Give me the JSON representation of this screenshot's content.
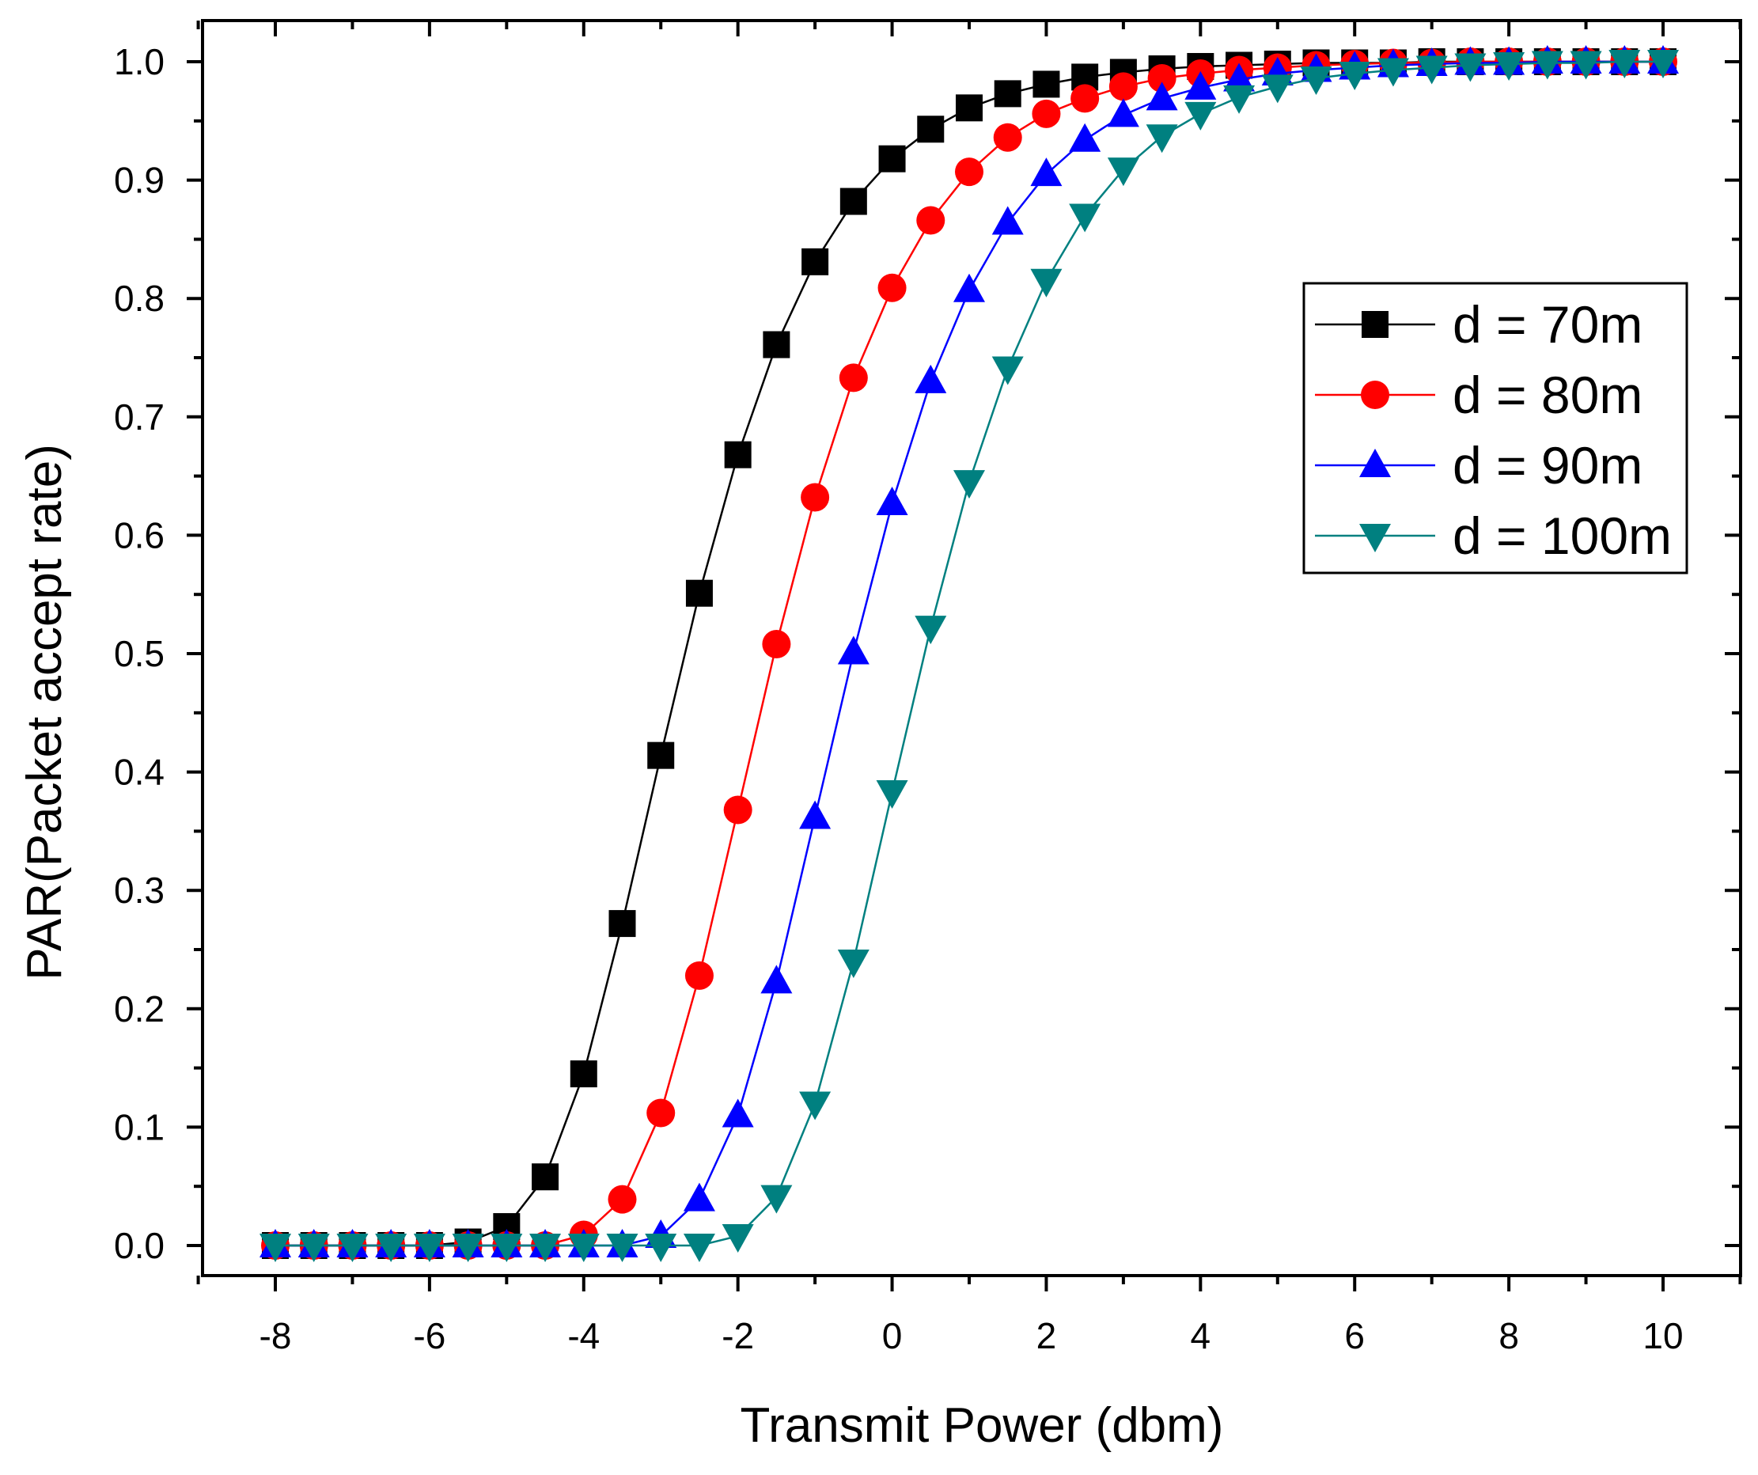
{
  "chart_data": {
    "type": "line",
    "title": "",
    "xlabel": "Transmit Power (dbm)",
    "ylabel": "PAR(Packet accept rate)",
    "xlim": [
      -9,
      11
    ],
    "ylim": [
      -0.05,
      1.02
    ],
    "xticks": [
      -8,
      -6,
      -4,
      -2,
      0,
      2,
      4,
      6,
      8,
      10
    ],
    "xtick_labels": [
      "-8",
      "-6",
      "-4",
      "-2",
      "0",
      "2",
      "4",
      "6",
      "8",
      "10"
    ],
    "yticks": [
      0.0,
      0.1,
      0.2,
      0.3,
      0.4,
      0.5,
      0.6,
      0.7,
      0.8,
      0.9,
      1.0
    ],
    "ytick_labels": [
      "0.0",
      "0.1",
      "0.2",
      "0.3",
      "0.4",
      "0.5",
      "0.6",
      "0.7",
      "0.8",
      "0.9",
      "1.0"
    ],
    "grid": false,
    "legend_position": "right-upper",
    "x": [
      -8,
      -7.5,
      -7,
      -6.5,
      -6,
      -5.5,
      -5,
      -4.5,
      -4,
      -3.5,
      -3,
      -2.5,
      -2,
      -1.5,
      -1,
      -0.5,
      0,
      0.5,
      1,
      1.5,
      2,
      2.5,
      3,
      3.5,
      4,
      4.5,
      5,
      5.5,
      6,
      6.5,
      7,
      7.5,
      8,
      8.5,
      9,
      9.5,
      10
    ],
    "series": [
      {
        "name": "d = 70m",
        "color": "#000000",
        "marker": "square",
        "values": [
          0,
          0,
          0,
          0,
          0,
          0.003,
          0.016,
          0.058,
          0.145,
          0.272,
          0.414,
          0.551,
          0.668,
          0.761,
          0.831,
          0.882,
          0.918,
          0.943,
          0.961,
          0.973,
          0.981,
          0.987,
          0.991,
          0.994,
          0.996,
          0.997,
          0.998,
          0.999,
          0.999,
          0.999,
          1.0,
          1.0,
          1.0,
          1.0,
          1.0,
          1.0,
          1.0
        ]
      },
      {
        "name": "d = 80m",
        "color": "#ff0000",
        "marker": "circle",
        "values": [
          0,
          0,
          0,
          0,
          0,
          0,
          0,
          0,
          0.009,
          0.039,
          0.112,
          0.228,
          0.368,
          0.508,
          0.632,
          0.733,
          0.809,
          0.866,
          0.907,
          0.936,
          0.956,
          0.969,
          0.979,
          0.986,
          0.99,
          0.993,
          0.995,
          0.997,
          0.998,
          0.999,
          0.999,
          1.0,
          1.0,
          1.0,
          1.0,
          1.0,
          1.0
        ]
      },
      {
        "name": "d = 90m",
        "color": "#0000ff",
        "marker": "triangle-up",
        "values": [
          0,
          0,
          0,
          0,
          0,
          0,
          0,
          0,
          0,
          0,
          0.008,
          0.039,
          0.11,
          0.223,
          0.362,
          0.501,
          0.627,
          0.73,
          0.807,
          0.864,
          0.905,
          0.934,
          0.955,
          0.969,
          0.978,
          0.985,
          0.99,
          0.993,
          0.995,
          0.997,
          0.998,
          0.999,
          0.999,
          1.0,
          1.0,
          1.0,
          1.0
        ]
      },
      {
        "name": "d = 100m",
        "color": "#008080",
        "marker": "triangle-down",
        "values": [
          0,
          0,
          0,
          0,
          0,
          0,
          0,
          0,
          0,
          0,
          0,
          0,
          0.008,
          0.041,
          0.12,
          0.24,
          0.383,
          0.522,
          0.645,
          0.741,
          0.815,
          0.87,
          0.909,
          0.937,
          0.956,
          0.97,
          0.979,
          0.986,
          0.99,
          0.993,
          0.995,
          0.997,
          0.998,
          0.999,
          0.999,
          1.0,
          1.0
        ]
      }
    ],
    "legend": {
      "entries": [
        "d = 70m",
        "d = 80m",
        "d = 90m",
        "d = 100m"
      ]
    }
  }
}
